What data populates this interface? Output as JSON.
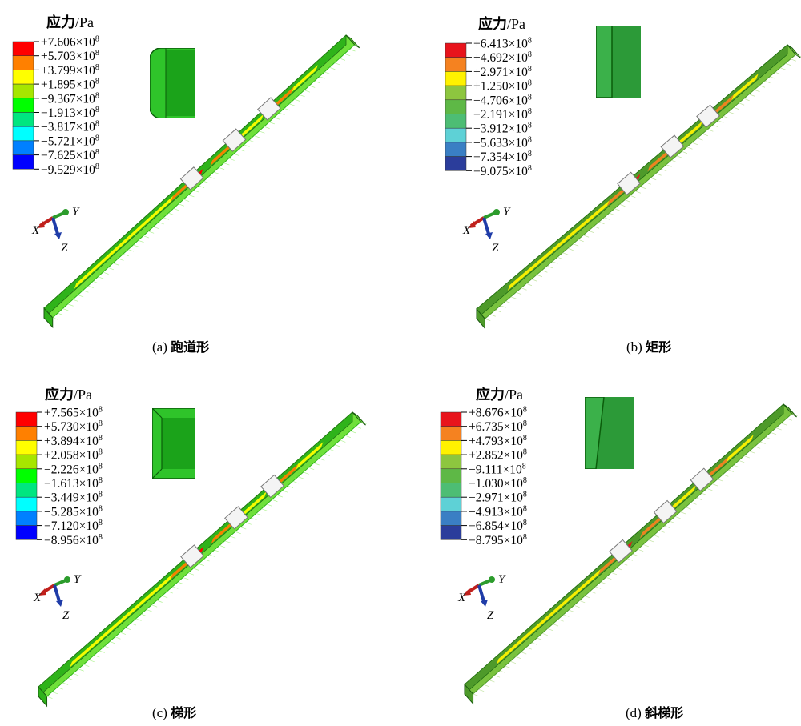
{
  "panels": [
    {
      "id": "a",
      "stress_label": "应力",
      "unit": "/Pa",
      "caption_prefix": "(a)",
      "caption_name": "跑道形",
      "legend_values": [
        "+7.606",
        "+5.703",
        "+3.799",
        "+1.895",
        "−9.367",
        "−1.913",
        "−3.817",
        "−5.721",
        "−7.625",
        "−9.529"
      ],
      "legend_exp": "8",
      "legend_colors": [
        "#ff0000",
        "#ff8000",
        "#ffff00",
        "#a6e600",
        "#00ff00",
        "#00e680",
        "#00ffff",
        "#0080ff",
        "#0000ff"
      ],
      "section": "racetrack",
      "beam_style": "bright",
      "axes": {
        "x": "X",
        "y": "Y",
        "z": "Z"
      }
    },
    {
      "id": "b",
      "stress_label": "应力",
      "unit": "/Pa",
      "caption_prefix": "(b)",
      "caption_name": "矩形",
      "legend_values": [
        "+6.413",
        "+4.692",
        "+2.971",
        "+1.250",
        "−4.706",
        "−2.191",
        "−3.912",
        "−5.633",
        "−7.354",
        "−9.075"
      ],
      "legend_exp": "8",
      "legend_colors": [
        "#e8141c",
        "#f58220",
        "#fff200",
        "#8dc63f",
        "#5eb846",
        "#4dbd74",
        "#5ed1d6",
        "#3a7fc4",
        "#2b3d9b"
      ],
      "section": "rectangle",
      "beam_style": "muted",
      "axes": {
        "x": "X",
        "y": "Y",
        "z": "Z"
      }
    },
    {
      "id": "c",
      "stress_label": "应力",
      "unit": "/Pa",
      "caption_prefix": "(c)",
      "caption_name": "梯形",
      "legend_values": [
        "+7.565",
        "+5.730",
        "+3.894",
        "+2.058",
        "−2.226",
        "−1.613",
        "−3.449",
        "−5.285",
        "−7.120",
        "−8.956"
      ],
      "legend_exp": "8",
      "legend_colors": [
        "#ff0000",
        "#ff8000",
        "#ffff00",
        "#a6e600",
        "#00ff00",
        "#00e680",
        "#00ffff",
        "#0080ff",
        "#0000ff"
      ],
      "section": "trapezoid",
      "beam_style": "bright",
      "axes": {
        "x": "X",
        "y": "Y",
        "z": "Z"
      }
    },
    {
      "id": "d",
      "stress_label": "应力",
      "unit": "/Pa",
      "caption_prefix": "(d)",
      "caption_name": "斜梯形",
      "legend_values": [
        "+8.676",
        "+6.735",
        "+4.793",
        "+2.852",
        "−9.111",
        "−1.030",
        "−2.971",
        "−4.913",
        "−6.854",
        "−8.795"
      ],
      "legend_exp": "8",
      "legend_colors": [
        "#e8141c",
        "#f58220",
        "#fff200",
        "#8dc63f",
        "#5eb846",
        "#4dbd74",
        "#5ed1d6",
        "#3a7fc4",
        "#2b3d9b"
      ],
      "section": "oblique",
      "beam_style": "muted",
      "axes": {
        "x": "X",
        "y": "Y",
        "z": "Z"
      }
    }
  ],
  "colors": {
    "bright_beam": "#6fe03a",
    "bright_beam_dark": "#2fb31a",
    "muted_beam": "#79c23e",
    "muted_beam_dark": "#4e9a2a",
    "axis_x": "#c0201c",
    "axis_y": "#2c9c2c",
    "axis_z": "#1f3ca8"
  }
}
